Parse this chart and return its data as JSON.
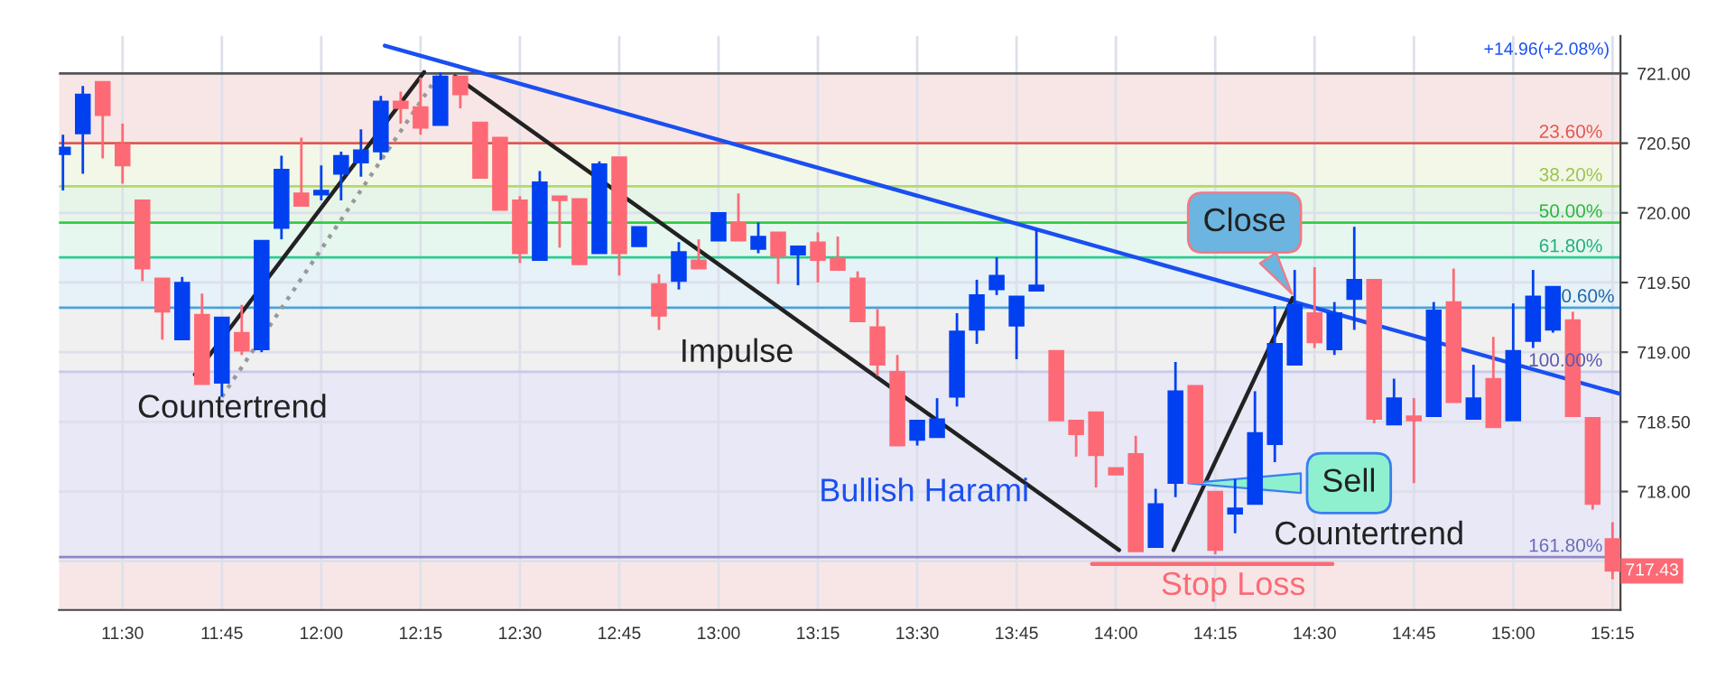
{
  "chart_data": {
    "type": "candlestick",
    "x": [
      11.35,
      11.4,
      11.45,
      11.5,
      11.55,
      11.6,
      11.65,
      11.7,
      11.75,
      11.8,
      11.85,
      11.9,
      11.95,
      12.0,
      12.05,
      12.1,
      12.15,
      12.2,
      12.25,
      12.3,
      12.35,
      12.4,
      12.45,
      12.5,
      12.55,
      12.6,
      12.65,
      12.7,
      12.75,
      12.8,
      12.85,
      12.9,
      12.95,
      13.0,
      13.05,
      13.1,
      13.15,
      13.2,
      13.25,
      13.3,
      13.35,
      13.4,
      13.45,
      13.5,
      13.55,
      13.6,
      13.65,
      13.7,
      13.75,
      13.8,
      13.85,
      13.9,
      13.95,
      14.0,
      14.05,
      14.1,
      14.15,
      14.2,
      14.25,
      14.3,
      14.35,
      14.4,
      14.45,
      14.5,
      14.55,
      14.6,
      14.65,
      14.7,
      14.75,
      14.8,
      14.85,
      14.9,
      14.95,
      15.0,
      15.05,
      15.1,
      15.15,
      15.2,
      15.25
    ],
    "ohlc": [
      [
        720.42,
        720.56,
        720.16,
        720.47
      ],
      [
        720.57,
        720.91,
        720.28,
        720.85
      ],
      [
        720.94,
        720.94,
        720.39,
        720.7
      ],
      [
        720.49,
        720.64,
        720.21,
        720.34
      ],
      [
        720.09,
        720.09,
        719.51,
        719.6
      ],
      [
        719.53,
        719.53,
        719.09,
        719.29
      ],
      [
        719.09,
        719.54,
        719.09,
        719.5
      ],
      [
        719.27,
        719.42,
        718.77,
        718.77
      ],
      [
        718.78,
        719.25,
        718.68,
        719.25
      ],
      [
        719.14,
        719.34,
        718.98,
        719.01
      ],
      [
        719.02,
        719.8,
        719.0,
        719.8
      ],
      [
        719.89,
        720.41,
        719.81,
        720.31
      ],
      [
        720.14,
        720.54,
        720.05,
        720.05
      ],
      [
        720.13,
        720.34,
        720.09,
        720.16
      ],
      [
        720.28,
        720.44,
        720.09,
        720.41
      ],
      [
        720.36,
        720.6,
        720.26,
        720.45
      ],
      [
        720.44,
        720.84,
        720.38,
        720.8
      ],
      [
        720.8,
        720.87,
        720.64,
        720.75
      ],
      [
        720.76,
        720.97,
        720.56,
        720.61
      ],
      [
        720.63,
        721.01,
        720.63,
        720.98
      ],
      [
        720.98,
        720.98,
        720.75,
        720.85
      ],
      [
        720.65,
        720.65,
        720.25,
        720.25
      ],
      [
        720.54,
        720.54,
        720.02,
        720.02
      ],
      [
        720.09,
        720.12,
        719.64,
        719.71
      ],
      [
        719.66,
        720.3,
        719.66,
        720.22
      ],
      [
        720.12,
        720.12,
        719.75,
        720.09
      ],
      [
        720.1,
        720.1,
        719.63,
        719.63
      ],
      [
        719.71,
        720.37,
        719.71,
        720.35
      ],
      [
        720.4,
        720.4,
        719.55,
        719.71
      ],
      [
        719.76,
        719.9,
        719.76,
        719.9
      ],
      [
        719.49,
        719.56,
        719.16,
        719.26
      ],
      [
        719.51,
        719.79,
        719.45,
        719.72
      ],
      [
        719.66,
        719.81,
        719.6,
        719.6
      ],
      [
        719.8,
        720.0,
        719.8,
        720.0
      ],
      [
        719.93,
        720.14,
        719.8,
        719.8
      ],
      [
        719.74,
        719.93,
        719.71,
        719.83
      ],
      [
        719.86,
        719.86,
        719.49,
        719.69
      ],
      [
        719.7,
        719.76,
        719.48,
        719.76
      ],
      [
        719.79,
        719.86,
        719.5,
        719.66
      ],
      [
        719.67,
        719.83,
        719.59,
        719.59
      ],
      [
        719.53,
        719.58,
        719.22,
        719.22
      ],
      [
        719.18,
        719.31,
        718.83,
        718.91
      ],
      [
        718.86,
        718.98,
        718.33,
        718.33
      ],
      [
        718.37,
        718.51,
        718.33,
        718.51
      ],
      [
        718.39,
        718.67,
        718.39,
        718.52
      ],
      [
        718.68,
        719.28,
        718.61,
        719.15
      ],
      [
        719.16,
        719.52,
        719.06,
        719.41
      ],
      [
        719.45,
        719.68,
        719.41,
        719.55
      ],
      [
        719.19,
        719.4,
        718.95,
        719.4
      ],
      [
        719.44,
        719.88,
        719.44,
        719.48
      ],
      [
        719.01,
        719.01,
        718.51,
        718.51
      ],
      [
        718.51,
        718.51,
        718.25,
        718.41
      ],
      [
        718.57,
        718.57,
        718.03,
        718.26
      ],
      [
        718.17,
        718.17,
        718.12,
        718.12
      ],
      [
        718.27,
        718.4,
        717.57,
        717.57
      ],
      [
        717.6,
        718.02,
        717.6,
        717.91
      ],
      [
        718.06,
        718.93,
        717.96,
        718.72
      ],
      [
        718.76,
        718.76,
        718.06,
        718.06
      ],
      [
        718.0,
        718.0,
        717.55,
        717.58
      ],
      [
        717.84,
        718.09,
        717.7,
        717.88
      ],
      [
        717.91,
        718.72,
        717.91,
        718.42
      ],
      [
        718.34,
        719.33,
        718.21,
        719.06
      ],
      [
        718.91,
        719.59,
        718.91,
        719.34
      ],
      [
        719.28,
        719.61,
        719.03,
        719.07
      ],
      [
        719.02,
        719.36,
        718.98,
        719.28
      ],
      [
        719.38,
        719.9,
        719.16,
        719.52
      ],
      [
        719.52,
        719.52,
        718.49,
        718.52
      ],
      [
        718.48,
        718.81,
        718.48,
        718.67
      ],
      [
        718.54,
        718.67,
        718.06,
        718.51
      ],
      [
        718.54,
        719.36,
        718.54,
        719.3
      ],
      [
        719.36,
        719.6,
        718.64,
        718.64
      ],
      [
        718.52,
        718.91,
        718.52,
        718.67
      ],
      [
        718.81,
        719.11,
        718.46,
        718.46
      ],
      [
        718.51,
        719.35,
        718.51,
        719.01
      ],
      [
        719.08,
        719.59,
        719.03,
        719.4
      ],
      [
        719.16,
        719.47,
        719.14,
        719.47
      ],
      [
        719.23,
        719.29,
        718.54,
        718.54
      ],
      [
        718.53,
        718.53,
        717.87,
        717.91
      ],
      [
        717.66,
        717.78,
        717.37,
        717.43
      ]
    ],
    "colors": [
      "#0040f0",
      "#0040f0",
      "#fd6a75",
      "#fd6a75",
      "#fd6a75",
      "#fd6a75",
      "#0040f0",
      "#fd6a75",
      "#0040f0",
      "#fd6a75",
      "#0040f0",
      "#0040f0",
      "#fd6a75",
      "#0040f0",
      "#0040f0",
      "#0040f0",
      "#0040f0",
      "#fd6a75",
      "#fd6a75",
      "#0040f0",
      "#fd6a75",
      "#fd6a75",
      "#fd6a75",
      "#fd6a75",
      "#0040f0",
      "#fd6a75",
      "#fd6a75",
      "#0040f0",
      "#fd6a75",
      "#0040f0",
      "#fd6a75",
      "#0040f0",
      "#fd6a75",
      "#0040f0",
      "#fd6a75",
      "#0040f0",
      "#fd6a75",
      "#0040f0",
      "#fd6a75",
      "#fd6a75",
      "#fd6a75",
      "#fd6a75",
      "#fd6a75",
      "#0040f0",
      "#0040f0",
      "#0040f0",
      "#0040f0",
      "#0040f0",
      "#0040f0",
      "#0040f0",
      "#fd6a75",
      "#fd6a75",
      "#fd6a75",
      "#fd6a75",
      "#fd6a75",
      "#0040f0",
      "#0040f0",
      "#fd6a75",
      "#fd6a75",
      "#0040f0",
      "#0040f0",
      "#0040f0",
      "#0040f0",
      "#fd6a75",
      "#0040f0",
      "#0040f0",
      "#fd6a75",
      "#0040f0",
      "#fd6a75",
      "#0040f0",
      "#fd6a75",
      "#0040f0",
      "#fd6a75",
      "#0040f0",
      "#0040f0",
      "#0040f0",
      "#fd6a75",
      "#fd6a75",
      "#fd6a75"
    ],
    "series": [
      {
        "type": "line",
        "color": "#1a4ff0",
        "line_style": "solid",
        "x": [
          12.16,
          15.27
        ],
        "values": [
          721.2,
          718.7
        ]
      },
      {
        "type": "line",
        "color": "#999999",
        "line_style": "dotted",
        "x": [
          11.75,
          12.3
        ],
        "values": [
          718.68,
          721.01
        ]
      },
      {
        "type": "line",
        "color": "#222222",
        "line_style": "solid",
        "x": [
          11.682,
          12.259
        ],
        "values": [
          718.84,
          721.01
        ]
      },
      {
        "type": "line",
        "color": "#222222",
        "line_style": "solid",
        "x": [
          12.337,
          14.008
        ],
        "values": [
          720.98,
          717.58
        ]
      },
      {
        "type": "line",
        "color": "#222222",
        "line_style": "solid",
        "x": [
          14.145,
          14.445
        ],
        "values": [
          717.58,
          719.39
        ]
      },
      {
        "type": "line",
        "color": "#fd6a75",
        "line_style": "solid",
        "x": [
          13.94,
          14.545
        ],
        "values": [
          717.48,
          717.48
        ]
      }
    ],
    "xlim": [
      11.34,
      15.27
    ],
    "ylim": [
      717.15,
      721.27
    ],
    "xticks": [
      {
        "value": 11.5,
        "label": "11:30"
      },
      {
        "value": 11.75,
        "label": "11:45"
      },
      {
        "value": 12.0,
        "label": "12:00"
      },
      {
        "value": 12.25,
        "label": "12:15"
      },
      {
        "value": 12.5,
        "label": "12:30"
      },
      {
        "value": 12.75,
        "label": "12:45"
      },
      {
        "value": 13.0,
        "label": "13:00"
      },
      {
        "value": 13.25,
        "label": "13:15"
      },
      {
        "value": 13.5,
        "label": "13:30"
      },
      {
        "value": 13.75,
        "label": "13:45"
      },
      {
        "value": 14.0,
        "label": "14:00"
      },
      {
        "value": 14.25,
        "label": "14:15"
      },
      {
        "value": 14.5,
        "label": "14:30"
      },
      {
        "value": 14.75,
        "label": "14:45"
      },
      {
        "value": 15.0,
        "label": "15:00"
      },
      {
        "value": 15.25,
        "label": "15:15"
      }
    ],
    "yticks": [
      {
        "value": 717.5,
        "label": null
      },
      {
        "value": 718.0,
        "label": "718.00"
      },
      {
        "value": 718.5,
        "label": "718.50"
      },
      {
        "value": 719.0,
        "label": "719.00"
      },
      {
        "value": 719.5,
        "label": "719.50"
      },
      {
        "value": 720.0,
        "label": "720.00"
      },
      {
        "value": 720.5,
        "label": "720.50"
      },
      {
        "value": 721.0,
        "label": "721.00"
      }
    ],
    "grid": true,
    "bands": [
      {
        "axis": "y",
        "from": 720.5,
        "to": 721.0,
        "color": "#f8e6e6"
      },
      {
        "axis": "y",
        "from": 720.19,
        "to": 720.5,
        "color": "#f2f7e8"
      },
      {
        "axis": "y",
        "from": 719.93,
        "to": 720.19,
        "color": "#e6f5e8"
      },
      {
        "axis": "y",
        "from": 719.68,
        "to": 719.93,
        "color": "#e6f7f0"
      },
      {
        "axis": "y",
        "from": 719.32,
        "to": 719.68,
        "color": "#e6f2f7"
      },
      {
        "axis": "y",
        "from": 718.86,
        "to": 719.32,
        "color": "#f0f0f0"
      },
      {
        "axis": "y",
        "from": 717.53,
        "to": 718.86,
        "color": "#e8e8f6"
      },
      {
        "axis": "y",
        "from": 717.15,
        "to": 717.53,
        "color": "#f8e6e6"
      }
    ],
    "ref_lines": [
      {
        "axis": "y",
        "value": 721.0,
        "color": "#555555"
      },
      {
        "axis": "y",
        "value": 720.5,
        "color": "#e0584f"
      },
      {
        "axis": "y",
        "value": 720.19,
        "color": "#b5d96a"
      },
      {
        "axis": "y",
        "value": 719.93,
        "color": "#33cc44"
      },
      {
        "axis": "y",
        "value": 719.68,
        "color": "#2ecc8f"
      },
      {
        "axis": "y",
        "value": 719.32,
        "color": "#4aa3d9"
      },
      {
        "axis": "y",
        "value": 718.86,
        "color": "#c8c8ea"
      },
      {
        "axis": "y",
        "value": 717.53,
        "color": "#8888cc"
      }
    ],
    "annotations": [
      "+14.96(+2.08%)",
      "Countertrend",
      "Impulse",
      "Bullish Harami",
      "Countertrend",
      "Stop Loss",
      {
        "text": "Close",
        "x": 14.45,
        "y": 719.39
      },
      {
        "text": "Sell",
        "x": 14.17,
        "y": 718.06
      },
      {
        "text": "717.43",
        "y": 717.43
      },
      {
        "text": "23.60%",
        "x": 15.225,
        "y": 720.5
      },
      {
        "text": "38.20%",
        "x": 15.225,
        "y": 720.19
      },
      {
        "text": "50.00%",
        "x": 15.225,
        "y": 719.93
      },
      {
        "text": "61.80%",
        "x": 15.225,
        "y": 719.68
      },
      {
        "text": "0.60%",
        "x": 15.255,
        "y": 719.32
      },
      {
        "text": "100.00%",
        "x": 15.225,
        "y": 718.86
      },
      {
        "text": "161.80%",
        "x": 15.225,
        "y": 717.53
      }
    ]
  }
}
